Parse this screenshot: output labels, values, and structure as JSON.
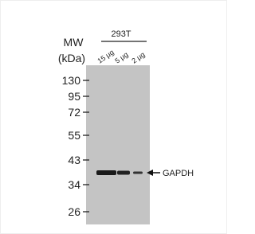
{
  "header": {
    "cell_line": "293T",
    "mw": "MW",
    "unit": "(kDa)"
  },
  "lanes": [
    "15 μg",
    "5 μg",
    "2 μg"
  ],
  "markers": [
    "130",
    "95",
    "72",
    "55",
    "43",
    "34",
    "26"
  ],
  "band_label": "GAPDH"
}
